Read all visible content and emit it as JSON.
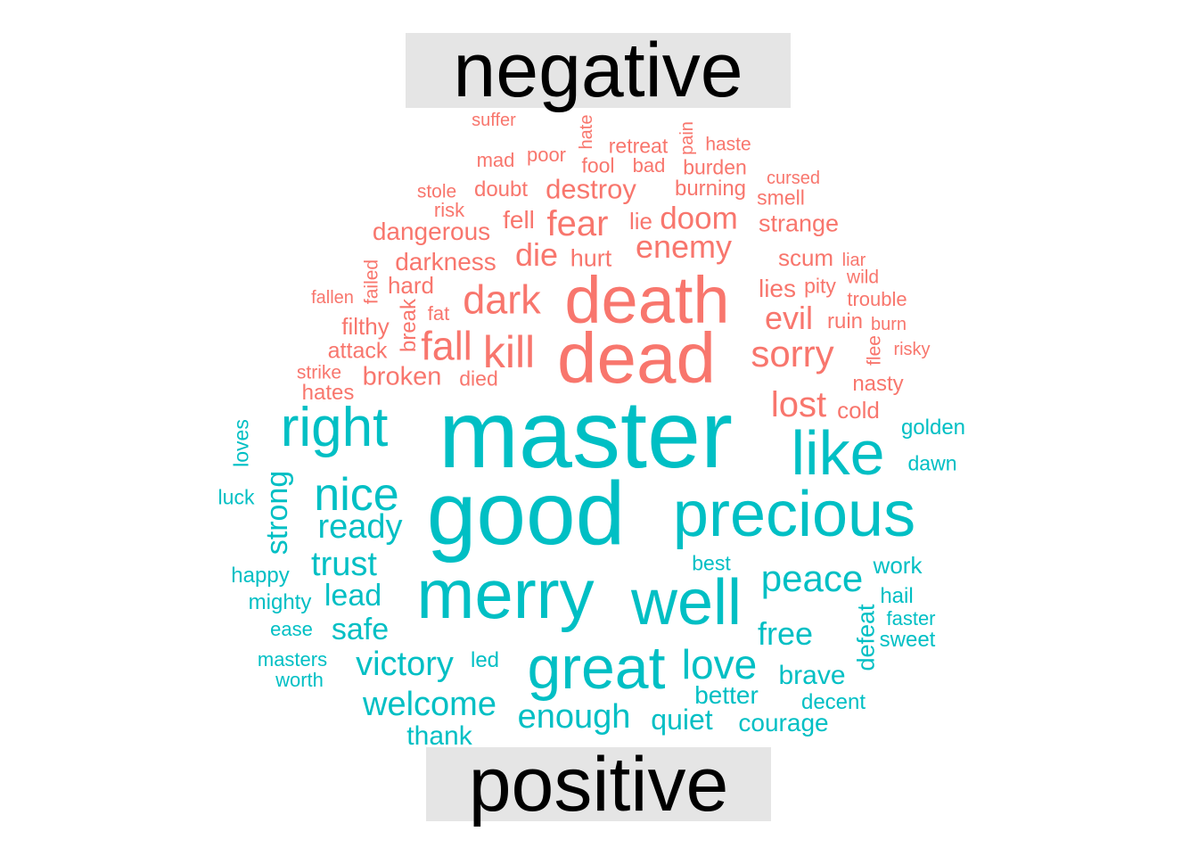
{
  "chart_data": {
    "type": "wordcloud",
    "groups": [
      {
        "name": "negative",
        "color": "#F8766D",
        "words": [
          "suffer",
          "hate",
          "pain",
          "mad",
          "poor",
          "retreat",
          "haste",
          "fool",
          "bad",
          "burden",
          "cursed",
          "stole",
          "doubt",
          "destroy",
          "burning",
          "smell",
          "risk",
          "fell",
          "fear",
          "lie",
          "doom",
          "dangerous",
          "strange",
          "enemy",
          "die",
          "hurt",
          "darkness",
          "scum",
          "liar",
          "failed",
          "hard",
          "wild",
          "fallen",
          "dark",
          "death",
          "lies",
          "pity",
          "trouble",
          "break",
          "fat",
          "evil",
          "ruin",
          "burn",
          "filthy",
          "dead",
          "flee",
          "fall",
          "kill",
          "sorry",
          "attack",
          "risky",
          "strike",
          "broken",
          "died",
          "hates",
          "nasty",
          "lost",
          "cold"
        ]
      },
      {
        "name": "positive",
        "color": "#00BFC4",
        "words": [
          "master",
          "golden",
          "right",
          "like",
          "loves",
          "dawn",
          "nice",
          "good",
          "precious",
          "luck",
          "strong",
          "ready",
          "trust",
          "best",
          "peace",
          "work",
          "happy",
          "mighty",
          "lead",
          "merry",
          "well",
          "hail",
          "defeat",
          "faster",
          "ease",
          "safe",
          "free",
          "sweet",
          "masters",
          "victory",
          "great",
          "led",
          "love",
          "brave",
          "worth",
          "better",
          "welcome",
          "decent",
          "enough",
          "quiet",
          "courage",
          "thank"
        ]
      }
    ]
  }
}
